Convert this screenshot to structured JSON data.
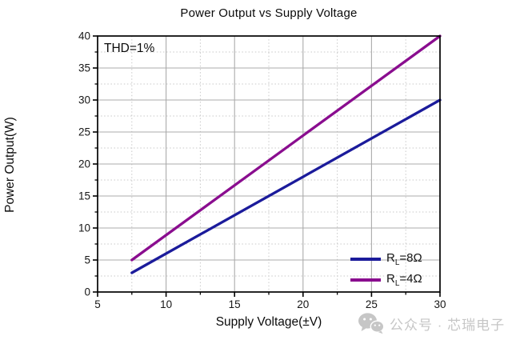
{
  "page": {
    "background": "#ffffff"
  },
  "chart_data": {
    "type": "line",
    "title": "Power Output vs Supply Voltage",
    "xlabel": "Supply Voltage(±V)",
    "ylabel": "Power Output(W)",
    "annotation": "THD=1%",
    "xlim": [
      5,
      30
    ],
    "ylim": [
      0,
      40
    ],
    "x_major_ticks": [
      5,
      10,
      15,
      20,
      25,
      30
    ],
    "x_minor_ticks": [
      7.5,
      12.5,
      17.5,
      22.5,
      27.5
    ],
    "y_major_ticks": [
      0,
      5,
      10,
      15,
      20,
      25,
      30,
      35,
      40
    ],
    "y_minor_ticks": [
      2.5,
      7.5,
      12.5,
      17.5,
      22.5,
      27.5,
      32.5,
      37.5
    ],
    "grid": {
      "major_color": "#ababab",
      "minor_color": "#c9c9c9",
      "minor_style": "dotted"
    },
    "legend_position": "inside-bottom-right",
    "series": [
      {
        "name": "RL=8Ω",
        "color": "#1b1b9b",
        "points": [
          [
            7.5,
            3
          ],
          [
            30,
            30
          ]
        ]
      },
      {
        "name": "RL=4Ω",
        "color": "#8a0d8f",
        "points": [
          [
            7.5,
            5
          ],
          [
            30,
            40
          ]
        ]
      }
    ]
  },
  "legend": {
    "items": [
      {
        "pre": "R",
        "sub": "L",
        "post": "=8Ω",
        "color": "#1b1b9b"
      },
      {
        "pre": "R",
        "sub": "L",
        "post": "=4Ω",
        "color": "#8a0d8f"
      }
    ]
  },
  "watermark": {
    "icon": "wechat-icon",
    "text": "公众号 · 芯瑞电子",
    "color": "#c6c6c6"
  }
}
